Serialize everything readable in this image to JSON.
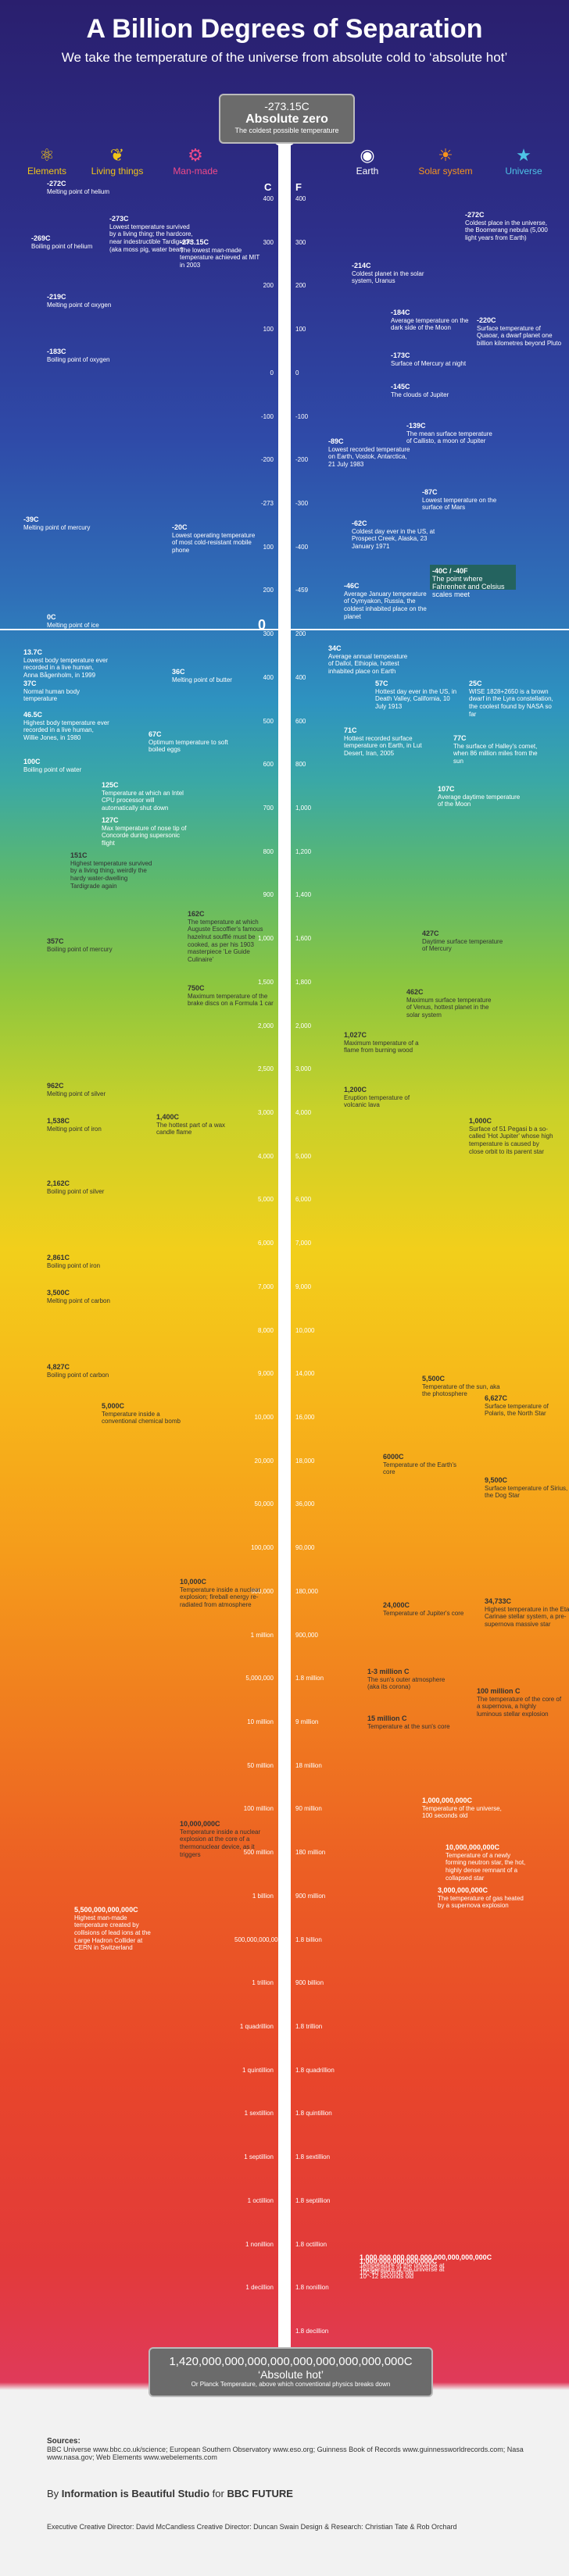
{
  "header": {
    "title": "A Billion Degrees of Separation",
    "subtitle": "We take the temperature of the universe from absolute cold to ‘absolute hot’"
  },
  "top_box": {
    "value": "-273.15C",
    "label": "Absolute zero",
    "sub": "The coldest possible temperature"
  },
  "categories": [
    {
      "name": "Elements",
      "color": "#f0c419",
      "icon": "atom-icon"
    },
    {
      "name": "Living things",
      "color": "#f0c419",
      "icon": "leaf-icon"
    },
    {
      "name": "Man-made",
      "color": "#ef4a89",
      "icon": "gear-icon"
    },
    {
      "name": "Earth",
      "color": "#ffffff",
      "icon": "globe-icon"
    },
    {
      "name": "Solar system",
      "color": "#f7941d",
      "icon": "sun-icon"
    },
    {
      "name": "Universe",
      "color": "#4ec3e6",
      "icon": "star-icon"
    }
  ],
  "axis_units": {
    "c": "C",
    "f": "F"
  },
  "ticks_left": [
    "400",
    "300",
    "200",
    "100",
    "0",
    "-100",
    "-200",
    "-273",
    "100",
    "200",
    "300",
    "400",
    "500",
    "600",
    "700",
    "800",
    "900",
    "1,000",
    "1,500",
    "2,000",
    "2,500",
    "3,000",
    "4,000",
    "5,000",
    "6,000",
    "7,000",
    "8,000",
    "9,000",
    "10,000",
    "20,000",
    "50,000",
    "100,000",
    "500,000",
    "1 million",
    "5,000,000",
    "10 million",
    "50 million",
    "100 million",
    "500 million",
    "1 billion",
    "500,000,000,000",
    "1 trillion",
    "1 quadrillion",
    "1 quintillion",
    "1 sextillion",
    "1 septillion",
    "1 octillion",
    "1 nonillion",
    "1 decillion"
  ],
  "ticks_right": [
    "400",
    "300",
    "200",
    "100",
    "0",
    "-100",
    "-200",
    "-300",
    "-400",
    "-459",
    "200",
    "400",
    "600",
    "800",
    "1,000",
    "1,200",
    "1,400",
    "1,600",
    "1,800",
    "2,000",
    "3,000",
    "4,000",
    "5,000",
    "6,000",
    "7,000",
    "9,000",
    "10,000",
    "14,000",
    "16,000",
    "18,000",
    "36,000",
    "90,000",
    "180,000",
    "900,000",
    "1.8 million",
    "9 million",
    "18 million",
    "90 million",
    "180 million",
    "900 million",
    "1.8 billion",
    "900 billion",
    "1.8 trillion",
    "1.8 quadrillion",
    "1.8 quintillion",
    "1.8 sextillion",
    "1.8 septillion",
    "1.8 octillion",
    "1.8 nonillion",
    "1.8 decillion"
  ],
  "zero_label": "0",
  "marker_40": {
    "value": "-40C / -40F",
    "text": "The point where Fahrenheit and Celsius scales meet"
  },
  "annotations": {
    "helium_melt": {
      "val": "-272C",
      "text": "Melting point of helium"
    },
    "helium_boil": {
      "val": "-269C",
      "text": "Boiling point of helium"
    },
    "oxygen_melt": {
      "val": "-219C",
      "text": "Melting point of oxygen"
    },
    "oxygen_boil": {
      "val": "-183C",
      "text": "Boiling point of oxygen"
    },
    "mercury_melt": {
      "val": "-39C",
      "text": "Melting point of mercury"
    },
    "tardigrade_cold": {
      "val": "-273C",
      "text": "Lowest temperature survived by a living thing; the hardcore, near indestructible Tardigrade (aka moss pig, water bear)"
    },
    "mit_low": {
      "val": "-273.15C",
      "text": "The lowest man-made temperature achieved at MIT in 2003"
    },
    "boomerang": {
      "val": "-272C",
      "text": "Coldest place in the universe, the Boomerang nebula (5,000 light years from Earth)"
    },
    "uranus": {
      "val": "-214C",
      "text": "Coldest planet in the solar system, Uranus"
    },
    "pluto": {
      "val": "-220C",
      "text": "Surface temperature of Quaoar, a dwarf planet one billion kilometres beyond Pluto"
    },
    "moon_dark": {
      "val": "-184C",
      "text": "Average temperature on the dark side of the Moon"
    },
    "mercury_night": {
      "val": "-173C",
      "text": "Surface of Mercury at night"
    },
    "jupiter_clouds": {
      "val": "-145C",
      "text": "The clouds of Jupiter"
    },
    "callisto": {
      "val": "-139C",
      "text": "The mean surface temperature of Callisto, a moon of Jupiter"
    },
    "vostok": {
      "val": "-89C",
      "text": "Lowest recorded temperature on Earth, Vostok, Antarctica, 21 July 1983"
    },
    "mars": {
      "val": "-87C",
      "text": "Lowest temperature on the surface of Mars"
    },
    "phone": {
      "val": "-20C",
      "text": "Lowest operating temperature of most cold-resistant mobile phone"
    },
    "prospect": {
      "val": "-62C",
      "text": "Coldest day ever in the US, at Prospect Creek, Alaska, 23 January 1971"
    },
    "oymyakon": {
      "val": "-46C",
      "text": "Average January temperature of Oymyakon, Russia, the coldest inhabited place on the planet"
    },
    "ice_melt": {
      "val": "0C",
      "text": "Melting point of ice"
    },
    "dallol": {
      "val": "34C",
      "text": "Average annual temperature of Dallol, Ethiopia, hottest inhabited place on Earth"
    },
    "human_low": {
      "val": "13.7C",
      "text": "Lowest body temperature ever recorded in a live human, Anna Bågenholm, in 1999"
    },
    "butter": {
      "val": "36C",
      "text": "Melting point of butter"
    },
    "human_normal": {
      "val": "37C",
      "text": "Normal human body temperature"
    },
    "death_valley": {
      "val": "57C",
      "text": "Hottest day ever in the US, in Death Valley, California, 10 July 1913"
    },
    "lyra": {
      "val": "25C",
      "text": "WISE 1828+2650 is a brown dwarf in the Lyra constellation, the coolest found by NASA so far"
    },
    "human_high": {
      "val": "46.5C",
      "text": "Highest body temperature ever recorded in a live human, Willie Jones, in 1980"
    },
    "egg": {
      "val": "67C",
      "text": "Optimum temperature to soft boiled eggs"
    },
    "lut": {
      "val": "71C",
      "text": "Hottest recorded surface temperature on Earth, in Lut Desert, Iran, 2005"
    },
    "halley": {
      "val": "77C",
      "text": "The surface of Halley's comet, when 86 million miles from the sun"
    },
    "water_boil": {
      "val": "100C",
      "text": "Boiling point of water"
    },
    "intel_cpu": {
      "val": "125C",
      "text": "Temperature at which an Intel CPU processor will automatically shut down"
    },
    "moon_day": {
      "val": "107C",
      "text": "Average daytime temperature of the Moon"
    },
    "concorde": {
      "val": "127C",
      "text": "Max temperature of nose tip of Concorde during supersonic flight"
    },
    "tardigrade_hot": {
      "val": "151C",
      "text": "Highest temperature survived by a living thing, weirdly the hardy water-dwelling Tardigrade again"
    },
    "souffle": {
      "val": "162C",
      "text": "The temperature at which Auguste Escoffier's famous hazelnut soufflé must be cooked, as per his 1903 masterpiece 'Le Guide Culinaire'"
    },
    "mercury_day": {
      "val": "427C",
      "text": "Daytime surface temperature of Mercury"
    },
    "mercury_boil": {
      "val": "357C",
      "text": "Boiling point of mercury"
    },
    "brakes": {
      "val": "750C",
      "text": "Maximum temperature of the brake discs on a Formula 1 car"
    },
    "venus": {
      "val": "462C",
      "text": "Maximum surface temperature of Venus, hottest planet in the solar system"
    },
    "silver_melt": {
      "val": "962C",
      "text": "Melting point of silver"
    },
    "wood_flame": {
      "val": "1,027C",
      "text": "Maximum temperature of a flame from burning wood"
    },
    "iron_melt": {
      "val": "1,538C",
      "text": "Melting point of iron"
    },
    "candle": {
      "val": "1,400C",
      "text": "The hottest part of a wax candle flame"
    },
    "lava": {
      "val": "1,200C",
      "text": "Eruption temperature of volcanic lava"
    },
    "hd149026": {
      "val": "1,000C",
      "text": "Surface of 51 Pegasi b a so-called 'Hot Jupiter' whose high temperature is caused by close orbit to its parent star"
    },
    "silver_boil": {
      "val": "2,162C",
      "text": "Boiling point of silver"
    },
    "iron_boil": {
      "val": "2,861C",
      "text": "Boiling point of iron"
    },
    "carbon_melt": {
      "val": "3,500C",
      "text": "Melting point of carbon"
    },
    "carbon_boil": {
      "val": "4,827C",
      "text": "Boiling point of carbon"
    },
    "chemical_bomb": {
      "val": "5,000C",
      "text": "Temperature inside a conventional chemical bomb"
    },
    "photosphere": {
      "val": "5,500C",
      "text": "Temperature of the sun, aka the photosphere"
    },
    "earth_core": {
      "val": "6000C",
      "text": "Temperature of the Earth's core"
    },
    "polaris": {
      "val": "6,627C",
      "text": "Surface temperature of Polaris, the North Star"
    },
    "sirius": {
      "val": "9,500C",
      "text": "Surface temperature of Sirius, the Dog Star"
    },
    "hbomb": {
      "val": "10,000C",
      "text": "Temperature inside a nuclear explosion; fireball energy re-radiated from atmosphere"
    },
    "jupiter_core": {
      "val": "24,000C",
      "text": "Temperature of Jupiter's core"
    },
    "rigel": {
      "val": "34,733C",
      "text": "Highest temperature in the Eta Carinae stellar system, a pre-supernova massive star"
    },
    "corona": {
      "val": "1-3 million C",
      "text": "The sun's outer atmosphere (aka its corona)"
    },
    "sun_core": {
      "val": "15 million C",
      "text": "Temperature at the sun's core"
    },
    "supernova": {
      "val": "100 million C",
      "text": "The temperature of the core of a supernova, a highly luminous stellar explosion"
    },
    "h_bomb_core": {
      "val": "10,000,000C",
      "text": "Temperature inside a nuclear explosion at the core of a thermonuclear device, as it triggers"
    },
    "universe_1s": {
      "val": "1,000,000,000C",
      "text": "Temperature of the universe, 100 seconds old"
    },
    "neutron": {
      "val": "10,000,000,000C",
      "text": "Temperature of a newly forming neutron star, the hot, highly dense remnant of a collapsed star"
    },
    "gas_heated": {
      "val": "3,000,000,000C",
      "text": "The temperature of gas heated by a supernova explosion"
    },
    "lhc": {
      "val": "5,500,000,000,000C",
      "text": "Highest man-made temperature created by collisions of lead ions at the Large Hadron Collider at CERN in Switzerland"
    },
    "universe_early": {
      "val": "1,000,000,000,000,000C",
      "text": "Temperature of the universe at 10^-12 seconds old"
    },
    "universe_earliest": {
      "val": "1,000,000,000,000,000,000,000,000,000C",
      "text": "Temperature of the universe at 10^-40 seconds old"
    }
  },
  "bottom_box": {
    "value": "1,420,000,000,000,000,000,000,000,000,000C",
    "label": "‘Absolute hot’",
    "sub": "Or Planck Temperature, above which conventional physics breaks down"
  },
  "footer": {
    "sources_label": "Sources:",
    "sources_text": "BBC Universe www.bbc.co.uk/science; European Southern Observatory www.eso.org; Guinness Book of Records www.guinnessworldrecords.com; Nasa www.nasa.gov; Web Elements www.webelements.com",
    "credit_by": "By",
    "credit_studio": "Information is Beautiful Studio",
    "credit_for": "for",
    "credit_bbc": "BBC",
    "credit_future": "FUTURE",
    "credit_line": "Executive Creative Director: David McCandless  Creative Director: Duncan Swain  Design & Research: Christian Tate & Rob Orchard"
  }
}
